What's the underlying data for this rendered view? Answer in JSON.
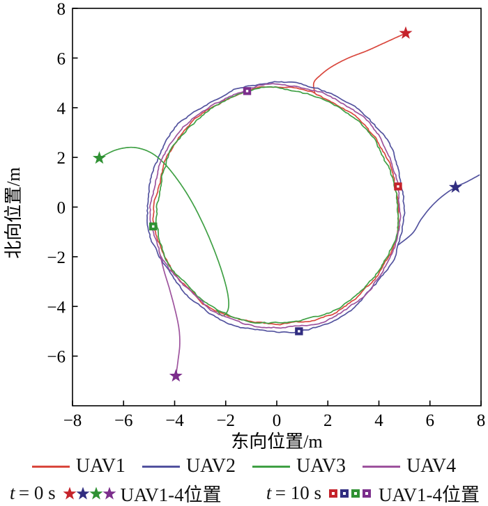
{
  "chart_data": {
    "type": "line",
    "title": "",
    "xlabel": "东向位置/m",
    "ylabel": "北向位置/m",
    "xlim": [
      -8,
      8
    ],
    "ylim": [
      -8,
      8
    ],
    "xticks": [
      -8,
      -6,
      -4,
      -2,
      0,
      2,
      4,
      6,
      8
    ],
    "yticks": [
      8,
      6,
      4,
      2,
      0,
      -2,
      -4,
      -6
    ],
    "grid": false,
    "legend_position": "below",
    "formation": {
      "center": [
        0,
        0
      ],
      "radius_m": 4.85
    },
    "series": [
      {
        "name": "UAV1",
        "line_color": "#d9473d",
        "marker_color": "#c5232b",
        "start_t0": [
          5.05,
          7.0
        ],
        "pos_t10": [
          4.75,
          0.83
        ],
        "ring": {
          "cx": 0,
          "cy": 0,
          "r": 4.78,
          "join_angle_deg": 72
        },
        "approach": [
          [
            5.05,
            7.0
          ],
          [
            4.3,
            6.65
          ],
          [
            3.55,
            6.3
          ],
          [
            2.8,
            6.0
          ],
          [
            2.15,
            5.65
          ],
          [
            1.7,
            5.3
          ],
          [
            1.45,
            5.0
          ]
        ]
      },
      {
        "name": "UAV2",
        "line_color": "#52529e",
        "marker_color": "#312d80",
        "start_t0": [
          7.0,
          0.8
        ],
        "pos_t10": [
          0.87,
          -5.0
        ],
        "ring": {
          "cx": 0,
          "cy": 0,
          "r": 5.03,
          "join_angle_deg": -18
        },
        "approach": [
          [
            7.95,
            1.3
          ],
          [
            7.45,
            1.02
          ],
          [
            7.0,
            0.8
          ],
          [
            6.5,
            0.45
          ],
          [
            6.05,
            0.02
          ],
          [
            5.65,
            -0.5
          ],
          [
            5.32,
            -1.05
          ]
        ]
      },
      {
        "name": "UAV3",
        "line_color": "#3fa044",
        "marker_color": "#2f9133",
        "start_t0": [
          -6.95,
          1.97
        ],
        "pos_t10": [
          -4.84,
          -0.78
        ],
        "ring": {
          "cx": 0,
          "cy": 0,
          "r": 4.72,
          "join_angle_deg": 240
        },
        "approach": [
          [
            -6.95,
            1.97
          ],
          [
            -6.3,
            2.3
          ],
          [
            -5.6,
            2.4
          ],
          [
            -4.95,
            2.2
          ],
          [
            -4.4,
            1.75
          ],
          [
            -3.85,
            1.05
          ],
          [
            -3.35,
            0.25
          ],
          [
            -2.9,
            -0.65
          ],
          [
            -2.5,
            -1.6
          ],
          [
            -2.15,
            -2.6
          ],
          [
            -1.92,
            -3.5
          ],
          [
            -1.9,
            -4.1
          ],
          [
            -2.12,
            -4.38
          ]
        ]
      },
      {
        "name": "UAV4",
        "line_color": "#9d539d",
        "marker_color": "#7c2e8c",
        "start_t0": [
          -3.95,
          -6.8
        ],
        "pos_t10": [
          -1.16,
          4.67
        ],
        "ring": {
          "cx": 0,
          "cy": 0,
          "r": 4.88,
          "join_angle_deg": 202
        },
        "approach": [
          [
            -3.95,
            -6.8
          ],
          [
            -3.87,
            -6.2
          ],
          [
            -3.8,
            -5.55
          ],
          [
            -3.83,
            -4.9
          ],
          [
            -3.98,
            -4.15
          ],
          [
            -4.2,
            -3.3
          ],
          [
            -4.42,
            -2.55
          ]
        ]
      }
    ]
  },
  "legend": {
    "t0": {
      "var": "t",
      "rest": "= 0 s",
      "label": "UAV1-4位置"
    },
    "t10": {
      "var": "t",
      "rest": "= 10 s",
      "label": "UAV1-4位置"
    }
  }
}
